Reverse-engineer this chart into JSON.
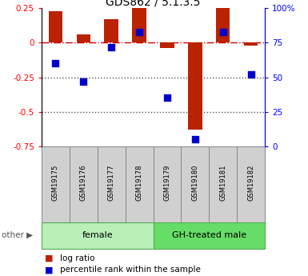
{
  "title": "GDS862 / 5.1.3.5",
  "samples": [
    "GSM19175",
    "GSM19176",
    "GSM19177",
    "GSM19178",
    "GSM19179",
    "GSM19180",
    "GSM19181",
    "GSM19182"
  ],
  "log_ratio": [
    0.23,
    0.06,
    0.17,
    0.25,
    -0.04,
    -0.63,
    0.25,
    -0.02
  ],
  "percentile_rank": [
    60,
    47,
    72,
    83,
    35,
    5,
    83,
    52
  ],
  "groups": [
    {
      "label": "female",
      "start": 0,
      "end": 4,
      "color": "#B8F0B8"
    },
    {
      "label": "GH-treated male",
      "start": 4,
      "end": 8,
      "color": "#66DD66"
    }
  ],
  "ylim_left": [
    -0.75,
    0.25
  ],
  "ylim_right": [
    0,
    100
  ],
  "bar_color": "#BB2200",
  "dot_color": "#0000CC",
  "hline_color": "#CC0000",
  "dotted_line_color": "#555555",
  "yticks_left": [
    0.25,
    0.0,
    -0.25,
    -0.5,
    -0.75
  ],
  "yticks_right": [
    100,
    75,
    50,
    25,
    0
  ],
  "bar_width": 0.5,
  "dot_size": 40
}
